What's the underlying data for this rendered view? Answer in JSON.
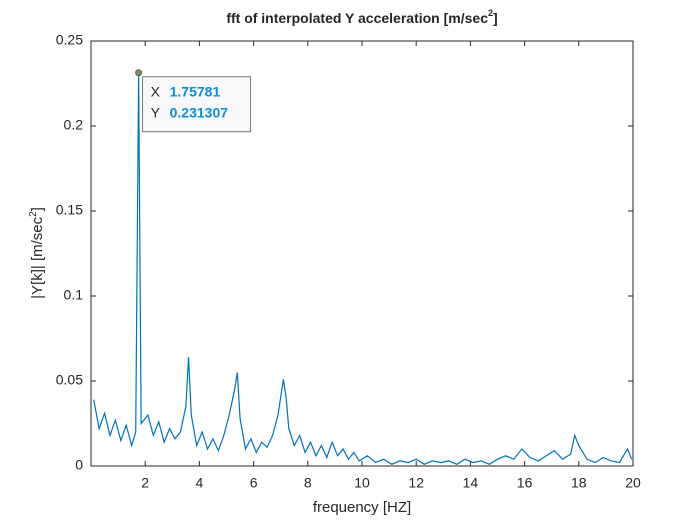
{
  "chart_data": {
    "type": "line",
    "title": "fft  of  interpolated  Y  acceleration  [m/sec",
    "title_sup": "2",
    "title_end": "]",
    "xlabel": "frequency [HZ]",
    "ylabel": "|Y[k]|  [m/sec",
    "ylabel_sup": "2",
    "ylabel_end": "]",
    "color": "#0072bd",
    "x": [
      0.1,
      0.3,
      0.5,
      0.7,
      0.9,
      1.1,
      1.3,
      1.5,
      1.65,
      1.75781,
      1.85,
      2.1,
      2.3,
      2.5,
      2.7,
      2.9,
      3.1,
      3.3,
      3.5,
      3.6,
      3.7,
      3.9,
      4.1,
      4.3,
      4.5,
      4.7,
      4.9,
      5.1,
      5.3,
      5.4,
      5.5,
      5.7,
      5.9,
      6.1,
      6.3,
      6.5,
      6.7,
      6.9,
      7.1,
      7.2,
      7.3,
      7.5,
      7.7,
      7.9,
      8.1,
      8.3,
      8.5,
      8.7,
      8.9,
      9.1,
      9.3,
      9.5,
      9.7,
      9.9,
      10.2,
      10.5,
      10.8,
      11.1,
      11.4,
      11.7,
      12,
      12.3,
      12.6,
      12.9,
      13.2,
      13.5,
      13.8,
      14.1,
      14.4,
      14.7,
      15,
      15.3,
      15.6,
      15.9,
      16.2,
      16.5,
      16.8,
      17.1,
      17.4,
      17.7,
      17.85,
      18,
      18.3,
      18.6,
      18.9,
      19.2,
      19.5,
      19.8,
      19.95
    ],
    "values": [
      0.039,
      0.022,
      0.031,
      0.018,
      0.027,
      0.015,
      0.024,
      0.012,
      0.02,
      0.231307,
      0.025,
      0.03,
      0.018,
      0.026,
      0.014,
      0.022,
      0.016,
      0.02,
      0.035,
      0.064,
      0.03,
      0.012,
      0.02,
      0.01,
      0.016,
      0.009,
      0.018,
      0.03,
      0.045,
      0.055,
      0.028,
      0.01,
      0.016,
      0.008,
      0.014,
      0.011,
      0.018,
      0.03,
      0.051,
      0.04,
      0.022,
      0.012,
      0.018,
      0.008,
      0.014,
      0.006,
      0.012,
      0.005,
      0.014,
      0.006,
      0.01,
      0.004,
      0.008,
      0.003,
      0.006,
      0.002,
      0.004,
      0.001,
      0.003,
      0.002,
      0.004,
      0.001,
      0.003,
      0.002,
      0.003,
      0.001,
      0.004,
      0.002,
      0.003,
      0.001,
      0.004,
      0.006,
      0.004,
      0.01,
      0.005,
      0.003,
      0.006,
      0.009,
      0.004,
      0.007,
      0.018,
      0.012,
      0.004,
      0.002,
      0.005,
      0.003,
      0.002,
      0.01,
      0.004
    ],
    "xlim": [
      0,
      20
    ],
    "xticks": [
      2,
      4,
      6,
      8,
      10,
      12,
      14,
      16,
      18,
      20
    ],
    "ylim": [
      0,
      0.25
    ],
    "yticks": [
      0,
      0.05,
      0.1,
      0.15,
      0.2,
      0.25
    ],
    "datatip": {
      "x_label": "X",
      "x": 1.75781,
      "y_label": "Y",
      "y": 0.231307
    }
  }
}
